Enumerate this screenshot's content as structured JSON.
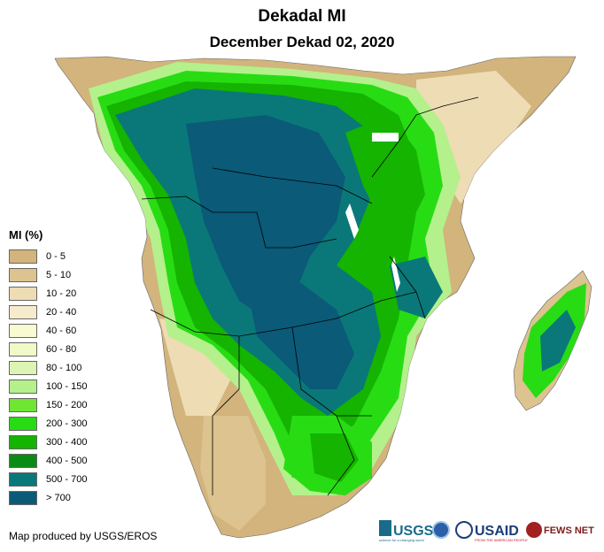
{
  "header": {
    "title": "Dekadal MI",
    "subtitle": "December Dekad 02, 2020"
  },
  "legend": {
    "title": "MI (%)",
    "items": [
      {
        "label": "0 - 5",
        "color": "#d2b47c"
      },
      {
        "label": "5 - 10",
        "color": "#dcc38f"
      },
      {
        "label": "10 - 20",
        "color": "#eedcb4"
      },
      {
        "label": "20 - 40",
        "color": "#f6ebcd"
      },
      {
        "label": "40 - 60",
        "color": "#fafad2"
      },
      {
        "label": "60 - 80",
        "color": "#f0fac8"
      },
      {
        "label": "80 - 100",
        "color": "#dcf5b4"
      },
      {
        "label": "100 - 150",
        "color": "#b4f08c"
      },
      {
        "label": "150 - 200",
        "color": "#6ee632"
      },
      {
        "label": "200 - 300",
        "color": "#28dc14"
      },
      {
        "label": "300 - 400",
        "color": "#14b400"
      },
      {
        "label": "400 - 500",
        "color": "#0a8c14"
      },
      {
        "label": "500 - 700",
        "color": "#0a7878"
      },
      {
        "label": "> 700",
        "color": "#0a5a78"
      }
    ]
  },
  "credit": "Map produced by USGS/EROS",
  "logos": {
    "usgs": "USGS",
    "usgs_tagline": "science for a changing world",
    "usaid": "USAID",
    "usaid_tagline": "FROM THE AMERICAN PEOPLE",
    "fewsnet": "FEWS NET"
  },
  "colors": {
    "water": "#ffffff",
    "border": "#000000"
  }
}
